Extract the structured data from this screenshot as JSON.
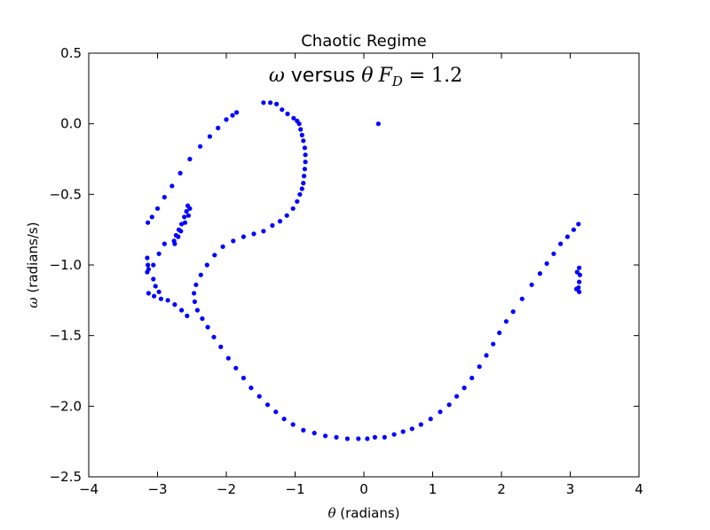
{
  "chart_data": {
    "type": "scatter",
    "title": "Chaotic Regime",
    "annotation": {
      "omega": "ω",
      "versus": " versus ",
      "theta": "θ",
      "F": "F",
      "sub": "D",
      "eq": " = 1.2"
    },
    "xlabel": {
      "symbol": "θ",
      "text": " (radians)"
    },
    "ylabel": {
      "symbol": "ω",
      "text": " (radians/s)"
    },
    "xlim": [
      -4,
      4
    ],
    "ylim": [
      -2.5,
      0.5
    ],
    "xticks": [
      {
        "value": -4,
        "label": "−4"
      },
      {
        "value": -3,
        "label": "−3"
      },
      {
        "value": -2,
        "label": "−2"
      },
      {
        "value": -1,
        "label": "−1"
      },
      {
        "value": 0,
        "label": "0"
      },
      {
        "value": 1,
        "label": "1"
      },
      {
        "value": 2,
        "label": "2"
      },
      {
        "value": 3,
        "label": "3"
      },
      {
        "value": 4,
        "label": "4"
      }
    ],
    "yticks": [
      {
        "value": 0.5,
        "label": "0.5"
      },
      {
        "value": 0.0,
        "label": "0.0"
      },
      {
        "value": -0.5,
        "label": "−0.5"
      },
      {
        "value": -1.0,
        "label": "−1.0"
      },
      {
        "value": -1.5,
        "label": "−1.5"
      },
      {
        "value": -2.0,
        "label": "−2.0"
      },
      {
        "value": -2.5,
        "label": "−2.5"
      }
    ],
    "grid": false,
    "color": "#0000ff",
    "series": [
      {
        "points": [
          [
            0.21,
            0.0
          ],
          [
            -1.46,
            0.15
          ],
          [
            -1.36,
            0.15
          ],
          [
            -1.27,
            0.14
          ],
          [
            -1.19,
            0.1
          ],
          [
            -1.11,
            0.07
          ],
          [
            -1.02,
            0.04
          ],
          [
            -0.97,
            0.02
          ],
          [
            -0.94,
            0.0
          ],
          [
            -0.92,
            -0.04
          ],
          [
            -0.9,
            -0.08
          ],
          [
            -0.88,
            -0.12
          ],
          [
            -0.86,
            -0.17
          ],
          [
            -0.85,
            -0.22
          ],
          [
            -0.85,
            -0.27
          ],
          [
            -0.86,
            -0.32
          ],
          [
            -0.87,
            -0.37
          ],
          [
            -0.88,
            -0.42
          ],
          [
            -0.9,
            -0.46
          ],
          [
            -0.93,
            -0.5
          ],
          [
            -0.97,
            -0.55
          ],
          [
            -1.03,
            -0.6
          ],
          [
            -1.12,
            -0.65
          ],
          [
            -1.22,
            -0.69
          ],
          [
            -1.33,
            -0.72
          ],
          [
            -1.46,
            -0.76
          ],
          [
            -1.6,
            -0.78
          ],
          [
            -1.75,
            -0.8
          ],
          [
            -1.9,
            -0.83
          ],
          [
            -2.05,
            -0.87
          ],
          [
            -2.17,
            -0.93
          ],
          [
            -2.28,
            -1.0
          ],
          [
            -2.37,
            -1.07
          ],
          [
            -2.44,
            -1.14
          ],
          [
            -2.47,
            -1.2
          ],
          [
            -2.46,
            -1.26
          ],
          [
            -2.42,
            -1.32
          ],
          [
            -2.35,
            -1.38
          ],
          [
            -2.27,
            -1.44
          ],
          [
            -2.18,
            -1.51
          ],
          [
            -2.08,
            -1.58
          ],
          [
            -1.97,
            -1.66
          ],
          [
            -1.86,
            -1.73
          ],
          [
            -1.75,
            -1.8
          ],
          [
            -1.64,
            -1.87
          ],
          [
            -1.52,
            -1.93
          ],
          [
            -1.4,
            -1.99
          ],
          [
            -1.28,
            -2.04
          ],
          [
            -1.16,
            -2.09
          ],
          [
            -1.03,
            -2.13
          ],
          [
            -0.88,
            -2.17
          ],
          [
            -0.72,
            -2.19
          ],
          [
            -0.56,
            -2.21
          ],
          [
            -0.4,
            -2.22
          ],
          [
            -0.24,
            -2.23
          ],
          [
            -0.08,
            -2.23
          ],
          [
            0.05,
            -2.23
          ],
          [
            0.16,
            -2.22
          ],
          [
            0.3,
            -2.22
          ],
          [
            0.44,
            -2.2
          ],
          [
            0.57,
            -2.18
          ],
          [
            0.7,
            -2.16
          ],
          [
            0.83,
            -2.13
          ],
          [
            0.97,
            -2.09
          ],
          [
            1.11,
            -2.04
          ],
          [
            1.24,
            -1.99
          ],
          [
            1.35,
            -1.93
          ],
          [
            1.46,
            -1.87
          ],
          [
            1.57,
            -1.8
          ],
          [
            1.68,
            -1.72
          ],
          [
            1.78,
            -1.64
          ],
          [
            1.88,
            -1.56
          ],
          [
            1.97,
            -1.48
          ],
          [
            2.07,
            -1.4
          ],
          [
            2.17,
            -1.33
          ],
          [
            2.3,
            -1.24
          ],
          [
            2.44,
            -1.14
          ],
          [
            2.56,
            -1.06
          ],
          [
            2.66,
            -0.99
          ],
          [
            2.76,
            -0.92
          ],
          [
            2.86,
            -0.85
          ],
          [
            2.96,
            -0.8
          ],
          [
            3.05,
            -0.75
          ],
          [
            3.12,
            -0.71
          ],
          [
            -3.14,
            -0.7
          ],
          [
            -3.08,
            -0.66
          ],
          [
            -3.0,
            -0.6
          ],
          [
            -2.9,
            -0.52
          ],
          [
            -2.79,
            -0.44
          ],
          [
            -2.67,
            -0.35
          ],
          [
            -2.53,
            -0.25
          ],
          [
            -2.38,
            -0.16
          ],
          [
            -2.24,
            -0.09
          ],
          [
            -2.12,
            -0.03
          ],
          [
            -2.0,
            0.03
          ],
          [
            -1.91,
            0.06
          ],
          [
            -1.85,
            0.08
          ],
          [
            -2.56,
            -0.58
          ],
          [
            -2.58,
            -0.62
          ],
          [
            -2.61,
            -0.66
          ],
          [
            -2.65,
            -0.71
          ],
          [
            -2.69,
            -0.75
          ],
          [
            -2.73,
            -0.79
          ],
          [
            -2.76,
            -0.83
          ],
          [
            -2.53,
            -0.6
          ],
          [
            -2.55,
            -0.65
          ],
          [
            -2.6,
            -0.7
          ],
          [
            -2.66,
            -0.76
          ],
          [
            -2.7,
            -0.8
          ],
          [
            -2.75,
            -0.85
          ],
          [
            -3.15,
            -0.95
          ],
          [
            -3.14,
            -1.0
          ],
          [
            -3.15,
            -1.05
          ],
          [
            -3.13,
            -1.03
          ],
          [
            -3.06,
            -1.0
          ],
          [
            -2.98,
            -0.92
          ],
          [
            -2.9,
            -0.85
          ],
          [
            -3.06,
            -1.1
          ],
          [
            -3.03,
            -1.15
          ],
          [
            -2.98,
            -1.19
          ],
          [
            -3.13,
            -1.2
          ],
          [
            -3.05,
            -1.22
          ],
          [
            -2.95,
            -1.24
          ],
          [
            -2.85,
            -1.25
          ],
          [
            -2.75,
            -1.28
          ],
          [
            -2.65,
            -1.32
          ],
          [
            -2.57,
            -1.36
          ],
          [
            3.13,
            -1.02
          ],
          [
            3.14,
            -1.07
          ],
          [
            3.13,
            -1.12
          ],
          [
            3.12,
            -1.16
          ],
          [
            3.13,
            -1.19
          ],
          [
            3.09,
            -1.17
          ],
          [
            3.1,
            -1.05
          ]
        ]
      }
    ]
  }
}
